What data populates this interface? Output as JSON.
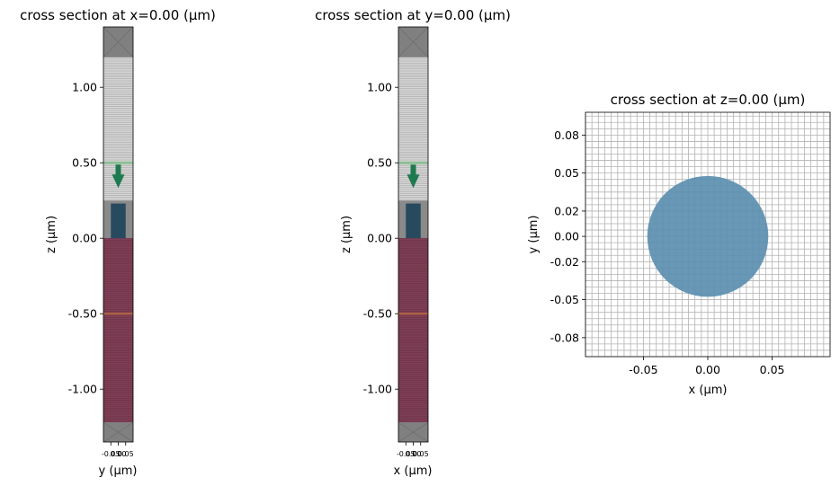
{
  "colors": {
    "pml_gray": "#808080",
    "grid_line": "#b3b3b3",
    "substrate": "#7f3f56",
    "pillar": "#284a5f",
    "source": "#1e7a4f",
    "monitor_line": "#c7773a",
    "circle": "#5b8fb0"
  },
  "chart_data": [
    {
      "type": "cross-section",
      "title": "cross section at x=0.00 (μm)",
      "xlabel": "y (μm)",
      "ylabel": "z (μm)",
      "xlim": [
        -0.1,
        0.1
      ],
      "ylim": [
        -1.35,
        1.4
      ],
      "x_ticks": [
        -0.05,
        0.0,
        0.05
      ],
      "x_tick_labels": [
        "-0.05",
        "0.00",
        "0.05"
      ],
      "y_ticks": [
        1.0,
        0.5,
        0.0,
        -0.5,
        -1.0
      ],
      "y_tick_labels": [
        "1.00",
        "0.50",
        "0.00",
        "-0.50",
        "-1.00"
      ],
      "structures": {
        "pml_top": [
          1.2,
          1.4
        ],
        "pml_bottom": [
          -1.35,
          -1.22
        ],
        "substrate_z": [
          -1.22,
          0.0
        ],
        "pillar": {
          "y": [
            -0.05,
            0.05
          ],
          "z": [
            0.0,
            0.23
          ]
        },
        "source_z": 0.5,
        "monitor_z": -0.5,
        "mesh_fine_z": [
          0.25,
          1.2
        ]
      }
    },
    {
      "type": "cross-section",
      "title": "cross section at y=0.00 (μm)",
      "xlabel": "x (μm)",
      "ylabel": "z (μm)",
      "xlim": [
        -0.1,
        0.1
      ],
      "ylim": [
        -1.35,
        1.4
      ],
      "x_ticks": [
        -0.05,
        0.0,
        0.05
      ],
      "x_tick_labels": [
        "-0.05",
        "0.00",
        "0.05"
      ],
      "y_ticks": [
        1.0,
        0.5,
        0.0,
        -0.5,
        -1.0
      ],
      "y_tick_labels": [
        "1.00",
        "0.50",
        "0.00",
        "-0.50",
        "-1.00"
      ],
      "structures": {
        "pml_top": [
          1.2,
          1.4
        ],
        "pml_bottom": [
          -1.35,
          -1.22
        ],
        "substrate_z": [
          -1.22,
          0.0
        ],
        "pillar": {
          "x": [
            -0.05,
            0.05
          ],
          "z": [
            0.0,
            0.23
          ]
        },
        "source_z": 0.5,
        "monitor_z": -0.5,
        "mesh_fine_z": [
          0.25,
          1.2
        ]
      }
    },
    {
      "type": "cross-section",
      "title": "cross section at z=0.00 (μm)",
      "xlabel": "x (μm)",
      "ylabel": "y (μm)",
      "xlim": [
        -0.095,
        0.095
      ],
      "ylim": [
        -0.095,
        0.098
      ],
      "x_ticks": [
        -0.05,
        0.0,
        0.05
      ],
      "x_tick_labels": [
        "-0.05",
        "0.00",
        "0.05"
      ],
      "y_ticks": [
        0.08,
        0.05,
        0.02,
        0.0,
        -0.02,
        -0.05,
        -0.08
      ],
      "y_tick_labels": [
        "0.08",
        "0.05",
        "0.02",
        "0.00",
        "-0.02",
        "-0.05",
        "-0.08"
      ],
      "circle": {
        "cx": 0.0,
        "cy": 0.0,
        "r": 0.047
      },
      "grid_step": 0.01
    }
  ]
}
